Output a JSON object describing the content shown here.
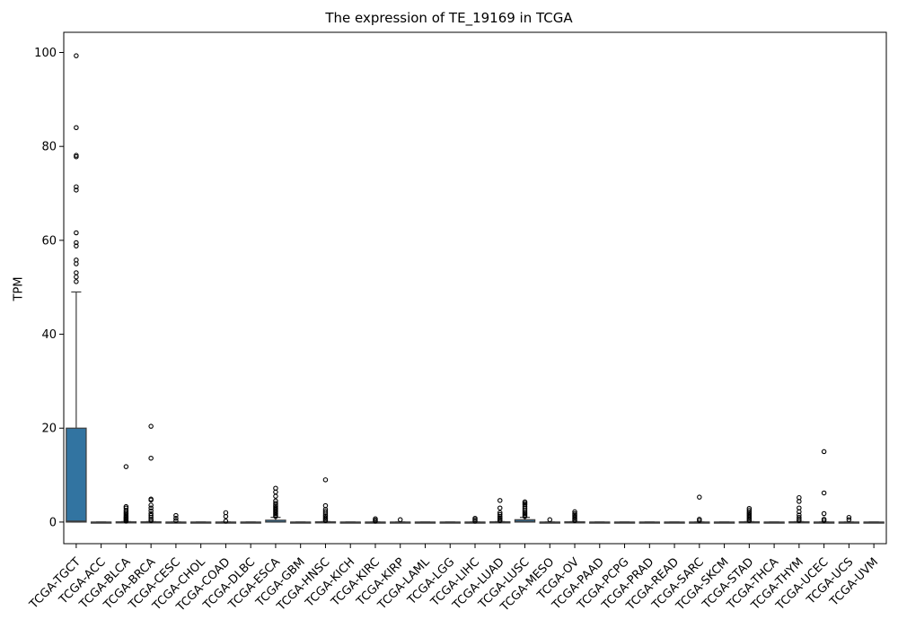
{
  "chart_data": {
    "type": "box",
    "title": "The expression of TE_19169 in TCGA",
    "xlabel": "",
    "ylabel": "TPM",
    "ylim": [
      -4.6,
      104.3
    ],
    "yticks": [
      0,
      20,
      40,
      60,
      80,
      100
    ],
    "grid": false,
    "box_color": "#3274a1",
    "categories": [
      "TCGA-TGCT",
      "TCGA-ACC",
      "TCGA-BLCA",
      "TCGA-BRCA",
      "TCGA-CESC",
      "TCGA-CHOL",
      "TCGA-COAD",
      "TCGA-DLBC",
      "TCGA-ESCA",
      "TCGA-GBM",
      "TCGA-HNSC",
      "TCGA-KICH",
      "TCGA-KIRC",
      "TCGA-KIRP",
      "TCGA-LAML",
      "TCGA-LGG",
      "TCGA-LIHC",
      "TCGA-LUAD",
      "TCGA-LUSC",
      "TCGA-MESO",
      "TCGA-OV",
      "TCGA-PAAD",
      "TCGA-PCPG",
      "TCGA-PRAD",
      "TCGA-READ",
      "TCGA-SARC",
      "TCGA-SKCM",
      "TCGA-STAD",
      "TCGA-THCA",
      "TCGA-THYM",
      "TCGA-UCEC",
      "TCGA-UCS",
      "TCGA-UVM"
    ],
    "boxes": [
      {
        "whislo": 0,
        "q1": 0,
        "med": 0.2,
        "q3": 20,
        "whishi": 49,
        "fliers": [
          51.2,
          52.2,
          53.1,
          55.0,
          55.8,
          58.8,
          59.5,
          61.6,
          70.7,
          71.4,
          77.8,
          78.1,
          84.0,
          99.3
        ]
      },
      {
        "whislo": 0,
        "q1": 0,
        "med": 0,
        "q3": 0,
        "whishi": 0,
        "fliers": []
      },
      {
        "whislo": 0,
        "q1": 0,
        "med": 0,
        "q3": 0.05,
        "whishi": 0.1,
        "fliers": [
          0.2,
          0.4,
          0.6,
          0.8,
          1.0,
          1.2,
          1.5,
          1.8,
          2.1,
          2.5,
          3.0,
          3.3,
          11.8
        ]
      },
      {
        "whislo": 0,
        "q1": 0,
        "med": 0,
        "q3": 0.05,
        "whishi": 0.1,
        "fliers": [
          0.3,
          0.6,
          1.0,
          1.4,
          1.8,
          2.4,
          3.0,
          3.6,
          4.7,
          4.9,
          13.6,
          20.4
        ]
      },
      {
        "whislo": 0,
        "q1": 0,
        "med": 0,
        "q3": 0,
        "whishi": 0,
        "fliers": [
          0.3,
          0.8,
          1.4
        ]
      },
      {
        "whislo": 0,
        "q1": 0,
        "med": 0,
        "q3": 0,
        "whishi": 0,
        "fliers": []
      },
      {
        "whislo": 0,
        "q1": 0,
        "med": 0,
        "q3": 0,
        "whishi": 0,
        "fliers": [
          0.2,
          1.2,
          2.0
        ]
      },
      {
        "whislo": 0,
        "q1": 0,
        "med": 0,
        "q3": 0,
        "whishi": 0,
        "fliers": []
      },
      {
        "whislo": 0,
        "q1": 0,
        "med": 0,
        "q3": 0.4,
        "whishi": 1.0,
        "fliers": [
          1.2,
          1.5,
          1.8,
          2.1,
          2.4,
          2.7,
          3.0,
          3.3,
          3.6,
          4.0,
          4.5,
          5.5,
          6.4,
          7.2
        ]
      },
      {
        "whislo": 0,
        "q1": 0,
        "med": 0,
        "q3": 0,
        "whishi": 0,
        "fliers": []
      },
      {
        "whislo": 0,
        "q1": 0,
        "med": 0,
        "q3": 0.05,
        "whishi": 0.1,
        "fliers": [
          0.3,
          0.6,
          0.9,
          1.2,
          1.5,
          1.9,
          2.3,
          2.7,
          3.5,
          9.0
        ]
      },
      {
        "whislo": 0,
        "q1": 0,
        "med": 0,
        "q3": 0,
        "whishi": 0,
        "fliers": []
      },
      {
        "whislo": 0,
        "q1": 0,
        "med": 0,
        "q3": 0,
        "whishi": 0,
        "fliers": [
          0.2,
          0.4,
          0.7
        ]
      },
      {
        "whislo": 0,
        "q1": 0,
        "med": 0,
        "q3": 0,
        "whishi": 0,
        "fliers": [
          0.5
        ]
      },
      {
        "whislo": 0,
        "q1": 0,
        "med": 0,
        "q3": 0,
        "whishi": 0,
        "fliers": []
      },
      {
        "whislo": 0,
        "q1": 0,
        "med": 0,
        "q3": 0,
        "whishi": 0,
        "fliers": []
      },
      {
        "whislo": 0,
        "q1": 0,
        "med": 0,
        "q3": 0,
        "whishi": 0,
        "fliers": [
          0.2,
          0.5,
          0.8
        ]
      },
      {
        "whislo": 0,
        "q1": 0,
        "med": 0,
        "q3": 0.05,
        "whishi": 0.1,
        "fliers": [
          0.3,
          0.6,
          0.9,
          1.2,
          1.6,
          2.0,
          3.0,
          4.6
        ]
      },
      {
        "whislo": 0,
        "q1": 0,
        "med": 0.1,
        "q3": 0.5,
        "whishi": 1.0,
        "fliers": [
          1.2,
          1.5,
          1.8,
          2.1,
          2.5,
          2.9,
          3.3,
          3.7,
          4.0,
          4.3
        ]
      },
      {
        "whislo": 0,
        "q1": 0,
        "med": 0,
        "q3": 0,
        "whishi": 0,
        "fliers": [
          0.5
        ]
      },
      {
        "whislo": 0,
        "q1": 0,
        "med": 0,
        "q3": 0.05,
        "whishi": 0.1,
        "fliers": [
          0.3,
          0.6,
          0.9,
          1.2,
          1.5,
          1.8,
          2.2
        ]
      },
      {
        "whislo": 0,
        "q1": 0,
        "med": 0,
        "q3": 0,
        "whishi": 0,
        "fliers": []
      },
      {
        "whislo": 0,
        "q1": 0,
        "med": 0,
        "q3": 0,
        "whishi": 0,
        "fliers": []
      },
      {
        "whislo": 0,
        "q1": 0,
        "med": 0,
        "q3": 0,
        "whishi": 0,
        "fliers": []
      },
      {
        "whislo": 0,
        "q1": 0,
        "med": 0,
        "q3": 0,
        "whishi": 0,
        "fliers": []
      },
      {
        "whislo": 0,
        "q1": 0,
        "med": 0,
        "q3": 0,
        "whishi": 0,
        "fliers": [
          0.3,
          0.6,
          5.3
        ]
      },
      {
        "whislo": 0,
        "q1": 0,
        "med": 0,
        "q3": 0,
        "whishi": 0,
        "fliers": []
      },
      {
        "whislo": 0,
        "q1": 0,
        "med": 0,
        "q3": 0.05,
        "whishi": 0.1,
        "fliers": [
          0.3,
          0.6,
          0.9,
          1.2,
          1.5,
          1.8,
          2.1,
          2.5,
          2.9
        ]
      },
      {
        "whislo": 0,
        "q1": 0,
        "med": 0,
        "q3": 0,
        "whishi": 0,
        "fliers": []
      },
      {
        "whislo": 0,
        "q1": 0,
        "med": 0,
        "q3": 0.05,
        "whishi": 0.1,
        "fliers": [
          0.3,
          0.6,
          1.0,
          1.5,
          2.2,
          3.0,
          4.4,
          5.2
        ]
      },
      {
        "whislo": 0,
        "q1": 0,
        "med": 0,
        "q3": 0,
        "whishi": 0,
        "fliers": [
          0.3,
          0.6,
          1.8,
          6.2,
          15.0
        ]
      },
      {
        "whislo": 0,
        "q1": 0,
        "med": 0,
        "q3": 0,
        "whishi": 0,
        "fliers": [
          0.5,
          1.0
        ]
      },
      {
        "whislo": 0,
        "q1": 0,
        "med": 0,
        "q3": 0,
        "whishi": 0,
        "fliers": []
      }
    ]
  }
}
